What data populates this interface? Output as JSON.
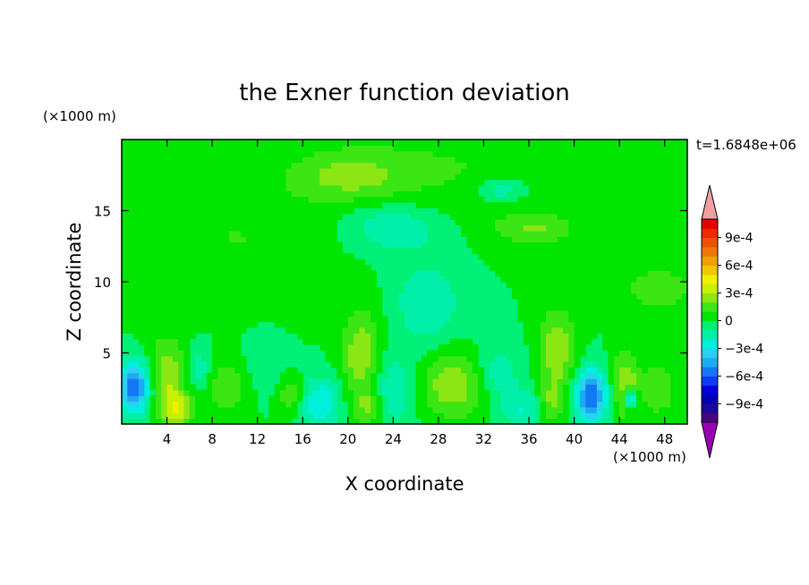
{
  "chart_data": {
    "type": "heatmap",
    "title": "the Exner function deviation",
    "xlabel": "X coordinate",
    "ylabel": "Z coordinate",
    "x_unit": "(×1000 m)",
    "y_unit": "(×1000 m)",
    "time_label": "t=1.6848e+06",
    "xlim": [
      0,
      50
    ],
    "ylim": [
      0,
      20
    ],
    "x_ticks": [
      4,
      8,
      12,
      16,
      20,
      24,
      28,
      32,
      36,
      40,
      44,
      48
    ],
    "y_ticks": [
      5,
      10,
      15
    ],
    "colorbar": {
      "levels": [
        -0.0011,
        -0.001,
        -0.0009,
        -0.0008,
        -0.0007,
        -0.0006,
        -0.0005,
        -0.0004,
        -0.0003,
        -0.0002,
        -0.0001,
        0,
        0.0001,
        0.0002,
        0.0003,
        0.0004,
        0.0005,
        0.0006,
        0.0007,
        0.0008,
        0.0009,
        0.001,
        0.0011
      ],
      "colors": [
        "#4b0082",
        "#1a0a9a",
        "#0000b4",
        "#0000dc",
        "#0a3cf5",
        "#1478f5",
        "#1eaaf0",
        "#28d2f0",
        "#00f0dc",
        "#00f0aa",
        "#00f078",
        "#00e600",
        "#3ce614",
        "#8ce614",
        "#c8f000",
        "#f0f000",
        "#f0c800",
        "#f0a000",
        "#f07800",
        "#f05000",
        "#f02800",
        "#e60000"
      ],
      "under_color": "#9a00b4",
      "over_color": "#f0a0a0",
      "tick_labels": [
        "9e-4",
        "6e-4",
        "3e-4",
        "0",
        "−3e-4",
        "−6e-4",
        "−9e-4"
      ]
    },
    "features": [
      {
        "x": 1.2,
        "z": 2.6,
        "value": -0.0006,
        "sx": 1.0,
        "sz": 1.3
      },
      {
        "x": 4.0,
        "z": 3.2,
        "value": 0.0003,
        "sx": 1.3,
        "sz": 2.0
      },
      {
        "x": 5.0,
        "z": 1.0,
        "value": 0.0003,
        "sx": 0.9,
        "sz": 0.8
      },
      {
        "x": 6.8,
        "z": 3.8,
        "value": -0.0002,
        "sx": 0.9,
        "sz": 1.2
      },
      {
        "x": 9.2,
        "z": 2.7,
        "value": 0.0002,
        "sx": 1.5,
        "sz": 1.4
      },
      {
        "x": 12.5,
        "z": 4.0,
        "value": -0.0001,
        "sx": 1.5,
        "sz": 1.5
      },
      {
        "x": 15.0,
        "z": 2.0,
        "value": 0.0002,
        "sx": 0.9,
        "sz": 1.0
      },
      {
        "x": 17.5,
        "z": 1.5,
        "value": -0.0003,
        "sx": 1.3,
        "sz": 1.3
      },
      {
        "x": 21.2,
        "z": 4.8,
        "value": 0.0003,
        "sx": 1.2,
        "sz": 2.2
      },
      {
        "x": 21.8,
        "z": 1.2,
        "value": 0.0002,
        "sx": 0.9,
        "sz": 0.9
      },
      {
        "x": 24.0,
        "z": 2.5,
        "value": -0.0002,
        "sx": 1.5,
        "sz": 1.8
      },
      {
        "x": 29.5,
        "z": 2.8,
        "value": 0.0003,
        "sx": 2.2,
        "sz": 1.6
      },
      {
        "x": 33.0,
        "z": 3.5,
        "value": -0.0002,
        "sx": 1.5,
        "sz": 1.5
      },
      {
        "x": 35.5,
        "z": 1.0,
        "value": -0.0002,
        "sx": 1.3,
        "sz": 1.0
      },
      {
        "x": 38.5,
        "z": 5.2,
        "value": 0.0003,
        "sx": 1.1,
        "sz": 2.0
      },
      {
        "x": 38.0,
        "z": 1.5,
        "value": 0.0002,
        "sx": 0.8,
        "sz": 1.0
      },
      {
        "x": 41.5,
        "z": 2.0,
        "value": -0.0006,
        "sx": 1.0,
        "sz": 1.3
      },
      {
        "x": 44.5,
        "z": 2.8,
        "value": 0.0003,
        "sx": 0.9,
        "sz": 1.6
      },
      {
        "x": 45.0,
        "z": 1.8,
        "value": -0.0005,
        "sx": 0.4,
        "sz": 0.5
      },
      {
        "x": 47.5,
        "z": 2.5,
        "value": 0.0002,
        "sx": 1.0,
        "sz": 1.3
      },
      {
        "x": 27.0,
        "z": 8.5,
        "value": -0.0002,
        "sx": 2.0,
        "sz": 2.0
      },
      {
        "x": 20.0,
        "z": 17.5,
        "value": 0.0002,
        "sx": 3.5,
        "sz": 1.2
      },
      {
        "x": 24.0,
        "z": 13.8,
        "value": -0.0002,
        "sx": 3.0,
        "sz": 1.2
      },
      {
        "x": 36.5,
        "z": 13.8,
        "value": 0.0002,
        "sx": 2.5,
        "sz": 0.8
      },
      {
        "x": 47.5,
        "z": 9.5,
        "value": 0.0002,
        "sx": 2.0,
        "sz": 1.0
      },
      {
        "x": 33.5,
        "z": 16.5,
        "value": -0.0002,
        "sx": 1.5,
        "sz": 0.6
      },
      {
        "x": 10.0,
        "z": 13.0,
        "value": 0.0001,
        "sx": 6.0,
        "sz": 3.0
      },
      {
        "x": 29.0,
        "z": 18.0,
        "value": 0.0001,
        "sx": 8.0,
        "sz": 2.5
      }
    ]
  }
}
